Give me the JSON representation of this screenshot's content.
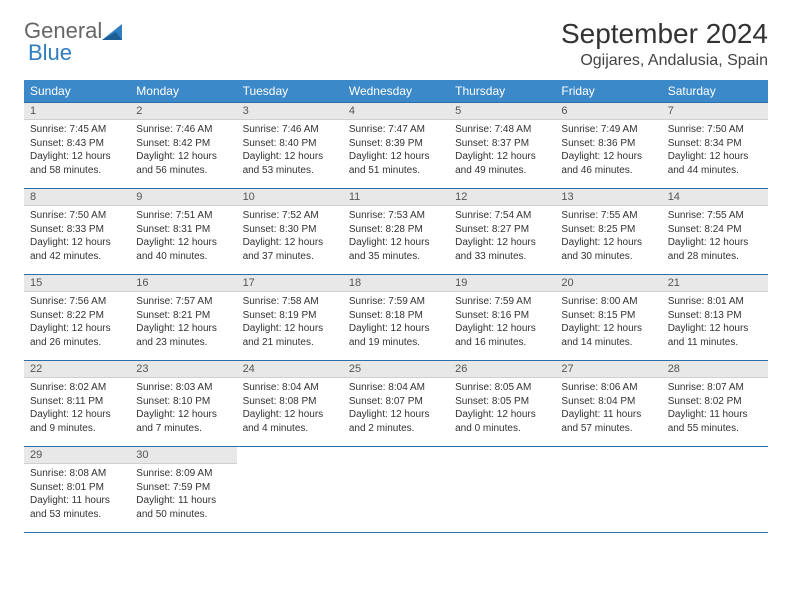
{
  "logo": {
    "text1": "General",
    "text2": "Blue"
  },
  "title": "September 2024",
  "location": "Ogijares, Andalusia, Spain",
  "colors": {
    "header_bg": "#3b89c9",
    "header_fg": "#ffffff",
    "rule": "#2c6fa8",
    "daynum_bg": "#e8e8e8",
    "text": "#333333",
    "logo_gray": "#666666",
    "logo_blue": "#2f7ec0"
  },
  "columns": [
    "Sunday",
    "Monday",
    "Tuesday",
    "Wednesday",
    "Thursday",
    "Friday",
    "Saturday"
  ],
  "days": [
    {
      "n": 1,
      "sr": "7:45 AM",
      "ss": "8:43 PM",
      "dl": "12 hours and 58 minutes."
    },
    {
      "n": 2,
      "sr": "7:46 AM",
      "ss": "8:42 PM",
      "dl": "12 hours and 56 minutes."
    },
    {
      "n": 3,
      "sr": "7:46 AM",
      "ss": "8:40 PM",
      "dl": "12 hours and 53 minutes."
    },
    {
      "n": 4,
      "sr": "7:47 AM",
      "ss": "8:39 PM",
      "dl": "12 hours and 51 minutes."
    },
    {
      "n": 5,
      "sr": "7:48 AM",
      "ss": "8:37 PM",
      "dl": "12 hours and 49 minutes."
    },
    {
      "n": 6,
      "sr": "7:49 AM",
      "ss": "8:36 PM",
      "dl": "12 hours and 46 minutes."
    },
    {
      "n": 7,
      "sr": "7:50 AM",
      "ss": "8:34 PM",
      "dl": "12 hours and 44 minutes."
    },
    {
      "n": 8,
      "sr": "7:50 AM",
      "ss": "8:33 PM",
      "dl": "12 hours and 42 minutes."
    },
    {
      "n": 9,
      "sr": "7:51 AM",
      "ss": "8:31 PM",
      "dl": "12 hours and 40 minutes."
    },
    {
      "n": 10,
      "sr": "7:52 AM",
      "ss": "8:30 PM",
      "dl": "12 hours and 37 minutes."
    },
    {
      "n": 11,
      "sr": "7:53 AM",
      "ss": "8:28 PM",
      "dl": "12 hours and 35 minutes."
    },
    {
      "n": 12,
      "sr": "7:54 AM",
      "ss": "8:27 PM",
      "dl": "12 hours and 33 minutes."
    },
    {
      "n": 13,
      "sr": "7:55 AM",
      "ss": "8:25 PM",
      "dl": "12 hours and 30 minutes."
    },
    {
      "n": 14,
      "sr": "7:55 AM",
      "ss": "8:24 PM",
      "dl": "12 hours and 28 minutes."
    },
    {
      "n": 15,
      "sr": "7:56 AM",
      "ss": "8:22 PM",
      "dl": "12 hours and 26 minutes."
    },
    {
      "n": 16,
      "sr": "7:57 AM",
      "ss": "8:21 PM",
      "dl": "12 hours and 23 minutes."
    },
    {
      "n": 17,
      "sr": "7:58 AM",
      "ss": "8:19 PM",
      "dl": "12 hours and 21 minutes."
    },
    {
      "n": 18,
      "sr": "7:59 AM",
      "ss": "8:18 PM",
      "dl": "12 hours and 19 minutes."
    },
    {
      "n": 19,
      "sr": "7:59 AM",
      "ss": "8:16 PM",
      "dl": "12 hours and 16 minutes."
    },
    {
      "n": 20,
      "sr": "8:00 AM",
      "ss": "8:15 PM",
      "dl": "12 hours and 14 minutes."
    },
    {
      "n": 21,
      "sr": "8:01 AM",
      "ss": "8:13 PM",
      "dl": "12 hours and 11 minutes."
    },
    {
      "n": 22,
      "sr": "8:02 AM",
      "ss": "8:11 PM",
      "dl": "12 hours and 9 minutes."
    },
    {
      "n": 23,
      "sr": "8:03 AM",
      "ss": "8:10 PM",
      "dl": "12 hours and 7 minutes."
    },
    {
      "n": 24,
      "sr": "8:04 AM",
      "ss": "8:08 PM",
      "dl": "12 hours and 4 minutes."
    },
    {
      "n": 25,
      "sr": "8:04 AM",
      "ss": "8:07 PM",
      "dl": "12 hours and 2 minutes."
    },
    {
      "n": 26,
      "sr": "8:05 AM",
      "ss": "8:05 PM",
      "dl": "12 hours and 0 minutes."
    },
    {
      "n": 27,
      "sr": "8:06 AM",
      "ss": "8:04 PM",
      "dl": "11 hours and 57 minutes."
    },
    {
      "n": 28,
      "sr": "8:07 AM",
      "ss": "8:02 PM",
      "dl": "11 hours and 55 minutes."
    },
    {
      "n": 29,
      "sr": "8:08 AM",
      "ss": "8:01 PM",
      "dl": "11 hours and 53 minutes."
    },
    {
      "n": 30,
      "sr": "8:09 AM",
      "ss": "7:59 PM",
      "dl": "11 hours and 50 minutes."
    }
  ],
  "labels": {
    "sunrise": "Sunrise:",
    "sunset": "Sunset:",
    "daylight": "Daylight:"
  },
  "layout": {
    "first_day_col": 0,
    "rows": 5,
    "cols": 7
  }
}
